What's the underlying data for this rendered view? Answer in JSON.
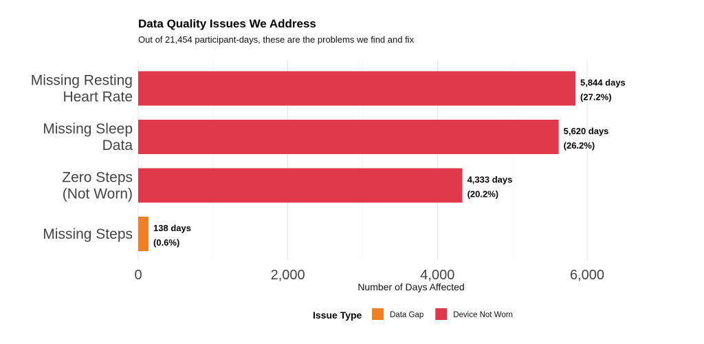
{
  "chart_data": {
    "type": "bar",
    "orientation": "horizontal",
    "title": "Data Quality Issues We Address",
    "subtitle": "Out of 21,454 participant-days, these are the problems we find and fix",
    "xlabel": "Number of Days Affected",
    "ylabel": "",
    "xlim": [
      0,
      6800
    ],
    "xticks": [
      0,
      2000,
      4000,
      6000
    ],
    "xtick_labels": [
      "0",
      "2,000",
      "4,000",
      "6,000"
    ],
    "grid": true,
    "categories": [
      [
        "Missing Resting",
        "Heart Rate"
      ],
      [
        "Missing Sleep",
        "Data"
      ],
      [
        "Zero Steps",
        "(Not Worn)"
      ],
      [
        "Missing Steps"
      ]
    ],
    "values": [
      5844,
      5620,
      4333,
      138
    ],
    "types": [
      "Device Not Worn",
      "Device Not Worn",
      "Device Not Worn",
      "Data Gap"
    ],
    "data_labels": [
      [
        "5,844 days",
        "(27.2%)"
      ],
      [
        "5,620 days",
        "(26.2%)"
      ],
      [
        "4,333 days",
        "(20.2%)"
      ],
      [
        "138 days",
        "(0.6%)"
      ]
    ],
    "legend": {
      "title": "Issue Type",
      "placement": "bottom",
      "entries": [
        {
          "label": "Data Gap",
          "color": "#F37F21"
        },
        {
          "label": "Device Not Worn",
          "color": "#E0374A"
        }
      ]
    }
  }
}
